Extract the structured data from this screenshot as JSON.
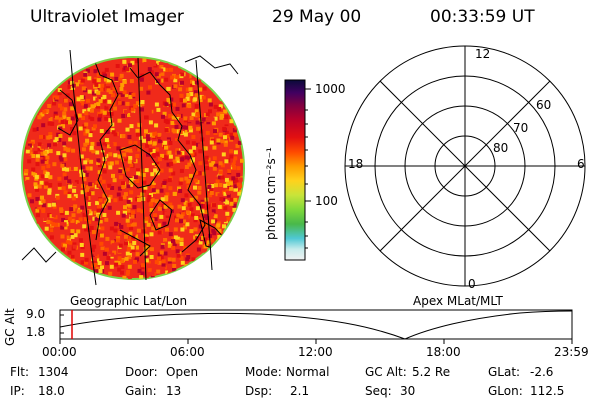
{
  "header": {
    "instrument": "Ultraviolet Imager",
    "date": "29 May 00",
    "time": "00:33:59 UT"
  },
  "colorbar": {
    "unit_label": "photon cm⁻²s⁻¹",
    "ticks": [
      "1000",
      "100"
    ],
    "colors": [
      "#f2f2f2",
      "#c8ecec",
      "#4fc8d4",
      "#49b84a",
      "#7fd83a",
      "#c8e43a",
      "#ffd21c",
      "#ff9d00",
      "#ff4a00",
      "#e31010",
      "#b8002a",
      "#800040",
      "#400060",
      "#0a0a3a"
    ]
  },
  "polar_plot": {
    "mlt_labels": [
      "12",
      "18",
      "6",
      "0"
    ],
    "mlat_labels": [
      "60",
      "70",
      "80"
    ]
  },
  "projection_labels": {
    "left": "Geographic Lat/Lon",
    "right": "Apex MLat/MLT"
  },
  "altitude_plot": {
    "ylabel": "GC Alt",
    "yticks": [
      "9.0",
      "1.8"
    ],
    "xticks": [
      "00:00",
      "06:00",
      "12:00",
      "18:00",
      "23:59"
    ],
    "marker_time": "00:34"
  },
  "status": {
    "flt_label": "Flt:",
    "flt_value": "1304",
    "door_label": "Door:",
    "door_value": "Open",
    "mode_label": "Mode:",
    "mode_value": "Normal",
    "gcalt_label": "GC Alt:",
    "gcalt_value": "5.2 Re",
    "glat_label": "GLat:",
    "glat_value": "-2.6",
    "ip_label": "IP:",
    "ip_value": "18.0",
    "gain_label": "Gain:",
    "gain_value": "13",
    "dsp_label": "Dsp:",
    "dsp_value": "2.1",
    "seq_label": "Seq:",
    "seq_value": "30",
    "glon_label": "GLon:",
    "glon_value": "112.5"
  }
}
